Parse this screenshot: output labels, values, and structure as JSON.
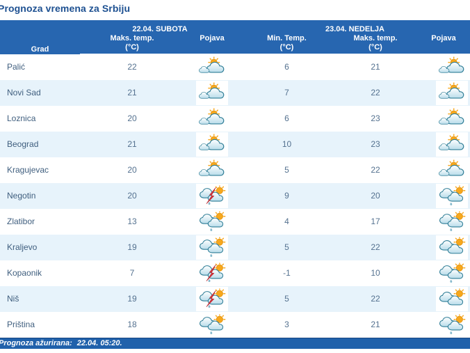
{
  "page_title": "Prognoza vremena za Srbiju",
  "table": {
    "day1_header": "22.04. SUBOTA",
    "day2_header": "23.04. NEDELJA",
    "columns": {
      "city": "Grad",
      "max_temp": "Maks. temp.",
      "min_temp": "Min. Temp.",
      "unit": "(°C)",
      "phenomenon": "Pojava"
    },
    "rows": [
      {
        "city": "Palić",
        "sat_max": "22",
        "sat_icon": "partly-cloudy",
        "sun_min": "6",
        "sun_max": "21",
        "sun_icon": "partly-cloudy"
      },
      {
        "city": "Novi Sad",
        "sat_max": "21",
        "sat_icon": "partly-cloudy",
        "sun_min": "7",
        "sun_max": "22",
        "sun_icon": "partly-cloudy"
      },
      {
        "city": "Loznica",
        "sat_max": "20",
        "sat_icon": "partly-cloudy",
        "sun_min": "6",
        "sun_max": "23",
        "sun_icon": "partly-cloudy"
      },
      {
        "city": "Beograd",
        "sat_max": "21",
        "sat_icon": "partly-cloudy",
        "sun_min": "10",
        "sun_max": "23",
        "sun_icon": "partly-cloudy"
      },
      {
        "city": "Kragujevac",
        "sat_max": "20",
        "sat_icon": "partly-cloudy",
        "sun_min": "5",
        "sun_max": "22",
        "sun_icon": "partly-cloudy"
      },
      {
        "city": "Negotin",
        "sat_max": "20",
        "sat_icon": "thunder-sun",
        "sun_min": "9",
        "sun_max": "20",
        "sun_icon": "rain-sun"
      },
      {
        "city": "Zlatibor",
        "sat_max": "13",
        "sat_icon": "rain-sun",
        "sun_min": "4",
        "sun_max": "17",
        "sun_icon": "rain-sun"
      },
      {
        "city": "Kraljevo",
        "sat_max": "19",
        "sat_icon": "rain-sun",
        "sun_min": "5",
        "sun_max": "22",
        "sun_icon": "cloudy-sun"
      },
      {
        "city": "Kopaonik",
        "sat_max": "7",
        "sat_icon": "thunder-sun",
        "sun_min": "-1",
        "sun_max": "10",
        "sun_icon": "rain-sun"
      },
      {
        "city": "Niš",
        "sat_max": "19",
        "sat_icon": "thunder-sun",
        "sun_min": "5",
        "sun_max": "22",
        "sun_icon": "cloudy-sun"
      },
      {
        "city": "Priština",
        "sat_max": "18",
        "sat_icon": "rain-sun",
        "sun_min": "3",
        "sun_max": "21",
        "sun_icon": "rain-sun"
      }
    ]
  },
  "icon_legend": {
    "partly-cloudy": "sunny with clouds",
    "cloudy-sun": "mostly cloudy with sun",
    "rain-sun": "cloudy with light rain and sun",
    "thunder-sun": "thunderstorm with rain and sun"
  },
  "footer": {
    "updated_label": "Prognoza ažurirana:",
    "updated_value": "22.04. 05:20."
  },
  "colors": {
    "header_bg": "#2766b0",
    "row_alt_bg": "#e7f3fb",
    "title_color": "#1d5091",
    "text_color": "#54718f",
    "footer_bg": "#2061ab",
    "sun": "#f7a81d",
    "thunder_bolt": "#d6363c",
    "cloud_outline": "#2e7d96"
  }
}
